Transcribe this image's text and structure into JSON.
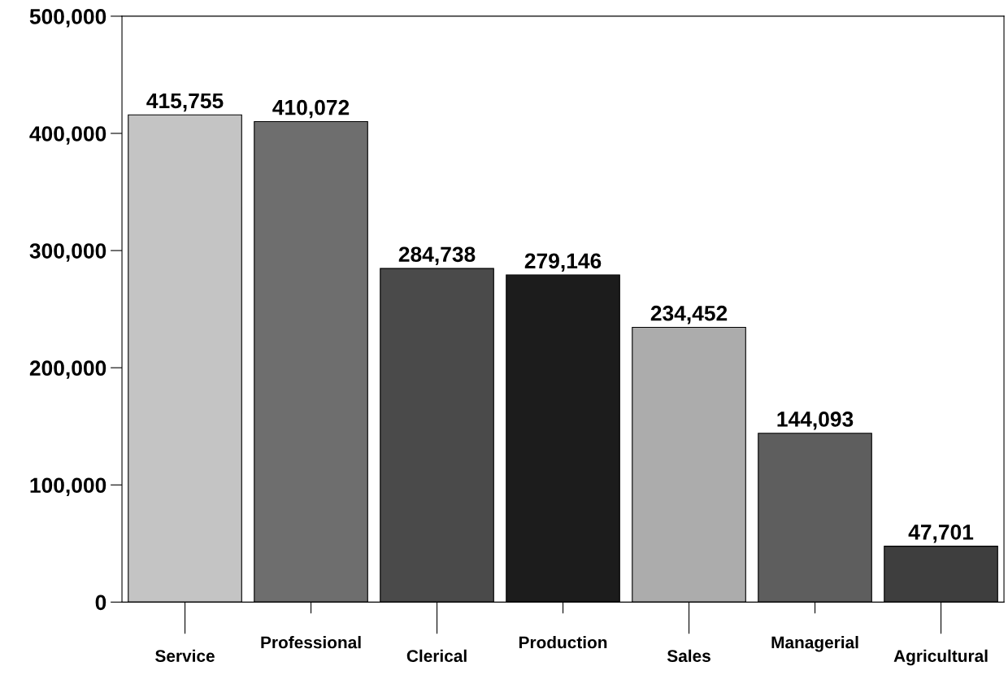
{
  "chart_data": {
    "type": "bar",
    "categories": [
      "Service",
      "Professional",
      "Clerical",
      "Production",
      "Sales",
      "Managerial",
      "Agricultural"
    ],
    "values": [
      415755,
      410072,
      284738,
      279146,
      234452,
      144093,
      47701
    ],
    "colors": [
      "#c4c4c4",
      "#6e6e6e",
      "#4a4a4a",
      "#1c1c1c",
      "#acacac",
      "#5e5e5e",
      "#3e3e3e"
    ],
    "ylim": [
      0,
      500000
    ],
    "yticks": [
      {
        "value": 0,
        "label": "0"
      },
      {
        "value": 100000,
        "label": "100,000"
      },
      {
        "value": 200000,
        "label": "200,000"
      },
      {
        "value": 300000,
        "label": "300,000"
      },
      {
        "value": 400000,
        "label": "400,000"
      },
      {
        "value": 500000,
        "label": "500,000"
      }
    ],
    "value_labels": [
      "415,755",
      "410,072",
      "284,738",
      "279,146",
      "234,452",
      "144,093",
      "47,701"
    ],
    "grid": false,
    "legend": false
  }
}
